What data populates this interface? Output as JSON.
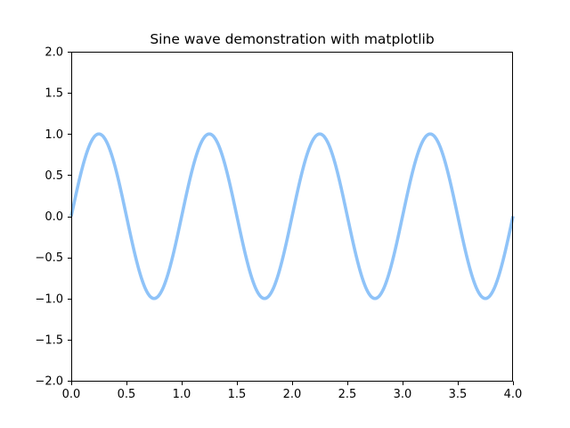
{
  "chart_data": {
    "type": "line",
    "title": "Sine wave demonstration with matplotlib",
    "xlabel": "",
    "ylabel": "",
    "xlim": [
      0.0,
      4.0
    ],
    "ylim": [
      -2.0,
      2.0
    ],
    "grid": false,
    "x_ticks": [
      "0.0",
      "0.5",
      "1.0",
      "1.5",
      "2.0",
      "2.5",
      "3.0",
      "3.5",
      "4.0"
    ],
    "y_ticks": [
      "2.0",
      "1.5",
      "1.0",
      "0.5",
      "0.0",
      "−0.5",
      "−1.0",
      "−1.5",
      "−2.0"
    ],
    "series": [
      {
        "function": "sin(2πx)",
        "color": "#8fc3f8",
        "x": [
          0.0,
          0.25,
          0.5,
          0.75,
          1.0,
          1.25,
          1.5,
          1.75,
          2.0,
          2.25,
          2.5,
          2.75,
          3.0,
          3.25,
          3.5,
          3.75,
          4.0
        ],
        "y": [
          0.0,
          1.0,
          0.0,
          -1.0,
          0.0,
          1.0,
          0.0,
          -1.0,
          0.0,
          1.0,
          0.0,
          -1.0,
          0.0,
          1.0,
          0.0,
          -1.0,
          0.0
        ]
      }
    ]
  }
}
